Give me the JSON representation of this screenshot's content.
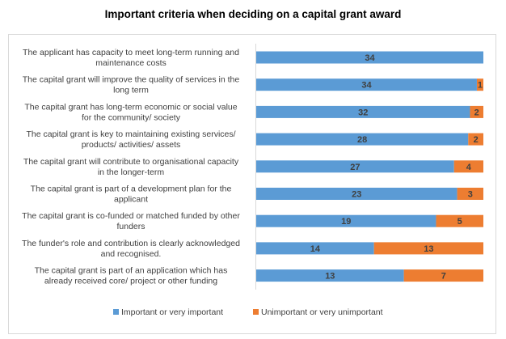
{
  "chart_data": {
    "type": "bar",
    "orientation": "horizontal",
    "stacking": "percent",
    "title": "Important criteria when deciding on a capital grant award",
    "categories": [
      [
        "The applicant has capacity to meet long-term running and",
        "maintenance costs"
      ],
      [
        "The capital grant will improve the quality of services in the",
        "long term"
      ],
      [
        "The capital grant has long-term economic or social value",
        "for the community/ society"
      ],
      [
        "The capital grant is key to maintaining existing services/",
        "products/ activities/ assets"
      ],
      [
        "The capital grant will contribute to organisational capacity",
        "in the longer-term"
      ],
      [
        "The capital grant is part of a development plan for the",
        "applicant"
      ],
      [
        "The capital grant is co-funded or matched funded by other",
        "funders"
      ],
      [
        "The funder's role and contribution is clearly acknowledged",
        "and recognised."
      ],
      [
        "The capital grant is part of an application which has",
        "already received core/ project or other funding"
      ]
    ],
    "series": [
      {
        "name": "Important or very important",
        "color": "#5B9BD5",
        "values": [
          34,
          34,
          32,
          28,
          27,
          23,
          19,
          14,
          13
        ]
      },
      {
        "name": "Unimportant or very unimportant",
        "color": "#ED7D31",
        "values": [
          0,
          1,
          2,
          2,
          4,
          3,
          5,
          13,
          7
        ]
      }
    ],
    "xlabel": "",
    "ylabel": "",
    "grid": false,
    "legend_position": "bottom"
  }
}
